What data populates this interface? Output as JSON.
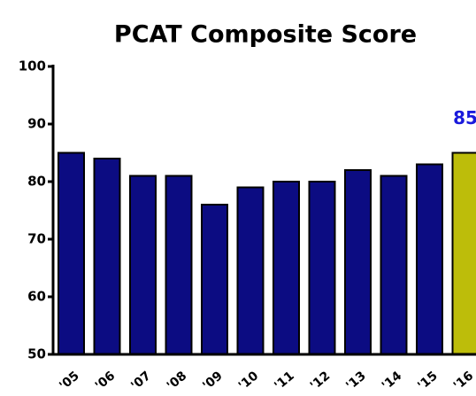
{
  "chart_data": {
    "type": "bar",
    "title": "PCAT Composite Score",
    "categories": [
      "'05",
      "'06",
      "'07",
      "'08",
      "'09",
      "'10",
      "'11",
      "'12",
      "'13",
      "'14",
      "'15",
      "'16"
    ],
    "values": [
      85,
      84,
      81,
      81,
      76,
      79,
      80,
      80,
      82,
      81,
      83,
      85
    ],
    "colors": [
      "#0c0c82",
      "#0c0c82",
      "#0c0c82",
      "#0c0c82",
      "#0c0c82",
      "#0c0c82",
      "#0c0c82",
      "#0c0c82",
      "#0c0c82",
      "#0c0c82",
      "#0c0c82",
      "#bdbd0a"
    ],
    "value_labels": [
      null,
      null,
      null,
      null,
      null,
      null,
      null,
      null,
      null,
      null,
      null,
      "85"
    ],
    "value_label_color": "#1a1adc",
    "ylim": [
      50,
      100
    ],
    "yticks": [
      50,
      60,
      70,
      80,
      90,
      100
    ],
    "grid": false
  }
}
